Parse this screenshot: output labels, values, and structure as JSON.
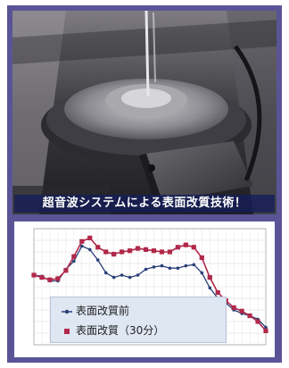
{
  "caption": "超音波システムによる表面改質技術！",
  "colors": {
    "frame": "#5a5496",
    "series_before": "#2a3f78",
    "series_after": "#b0284a"
  },
  "icons": {
    "photo": "ultrasonic-machine-photo"
  },
  "chart_data": {
    "type": "line",
    "title": "",
    "xlabel": "",
    "ylabel": "",
    "x": [
      1,
      2,
      3,
      4,
      5,
      6,
      7,
      8,
      9,
      10,
      11,
      12,
      13,
      14,
      15,
      16,
      17,
      18,
      19,
      20,
      21,
      22,
      23,
      24,
      25,
      26,
      27,
      28,
      29,
      30
    ],
    "series": [
      {
        "name": "表面改質前",
        "values": [
          3.0,
          2.9,
          2.5,
          2.5,
          3.5,
          4.2,
          5.5,
          5.2,
          4.3,
          3.2,
          2.8,
          3.0,
          2.8,
          3.0,
          3.5,
          3.7,
          3.8,
          3.6,
          3.6,
          3.8,
          3.9,
          3.2,
          1.9,
          1.0,
          0.6,
          0.0,
          -0.3,
          -0.5,
          -0.8,
          -1.5
        ]
      },
      {
        "name": "表面改質（30分）",
        "values": [
          3.0,
          2.8,
          2.6,
          2.7,
          3.4,
          4.6,
          5.9,
          6.2,
          5.4,
          5.0,
          4.8,
          5.0,
          5.1,
          5.3,
          5.2,
          5.1,
          5.0,
          5.0,
          5.4,
          5.6,
          5.4,
          4.5,
          2.8,
          1.5,
          0.8,
          0.2,
          -0.1,
          -0.5,
          -1.0,
          -1.8
        ]
      }
    ],
    "ylim": [
      -3,
      7
    ],
    "grid": true,
    "legend": "bottom-left"
  }
}
